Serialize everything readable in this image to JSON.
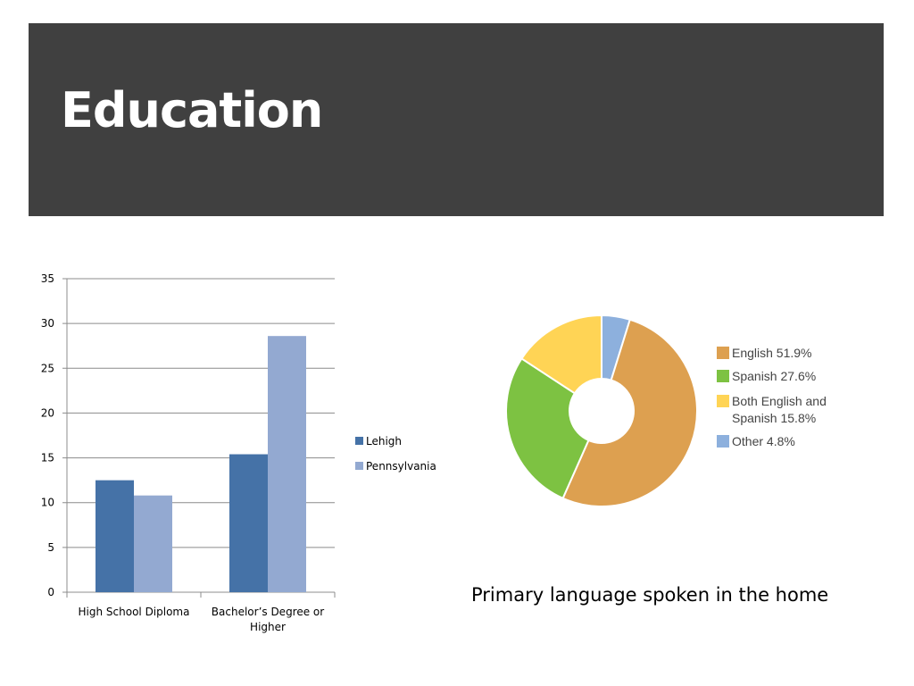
{
  "slide": {
    "title": "Education"
  },
  "chart_data": [
    {
      "type": "bar",
      "categories": [
        "High School Diploma",
        "Bachelor's Degree or Higher"
      ],
      "category_lines": [
        [
          "High School Diploma"
        ],
        [
          "Bachelor’s Degree or",
          "Higher"
        ]
      ],
      "series": [
        {
          "name": "Lehigh",
          "values": [
            12.5,
            15.4
          ],
          "color": "#4572A7"
        },
        {
          "name": "Pennsylvania",
          "values": [
            10.8,
            28.6
          ],
          "color": "#93A9D1"
        }
      ],
      "ylim": [
        0,
        35
      ],
      "yticks": [
        "0",
        "5",
        "10",
        "15",
        "20",
        "25",
        "30",
        "35"
      ],
      "grid": true,
      "legend": "right"
    },
    {
      "type": "pie",
      "caption": "Primary language spoken in the home",
      "slices": [
        {
          "label": "English",
          "value": 51.9,
          "legend_lines": [
            "English 51.9%"
          ],
          "color": "#DDA050"
        },
        {
          "label": "Spanish",
          "value": 27.6,
          "legend_lines": [
            "Spanish 27.6%"
          ],
          "color": "#7DC242"
        },
        {
          "label": "Both English and Spanish",
          "value": 15.8,
          "legend_lines": [
            "Both English and",
            "Spanish 15.8%"
          ],
          "color": "#FFD455"
        },
        {
          "label": "Other",
          "value": 4.8,
          "legend_lines": [
            "Other 4.8%"
          ],
          "color": "#8DB0DD"
        }
      ],
      "donut": true,
      "legend": "right"
    }
  ]
}
